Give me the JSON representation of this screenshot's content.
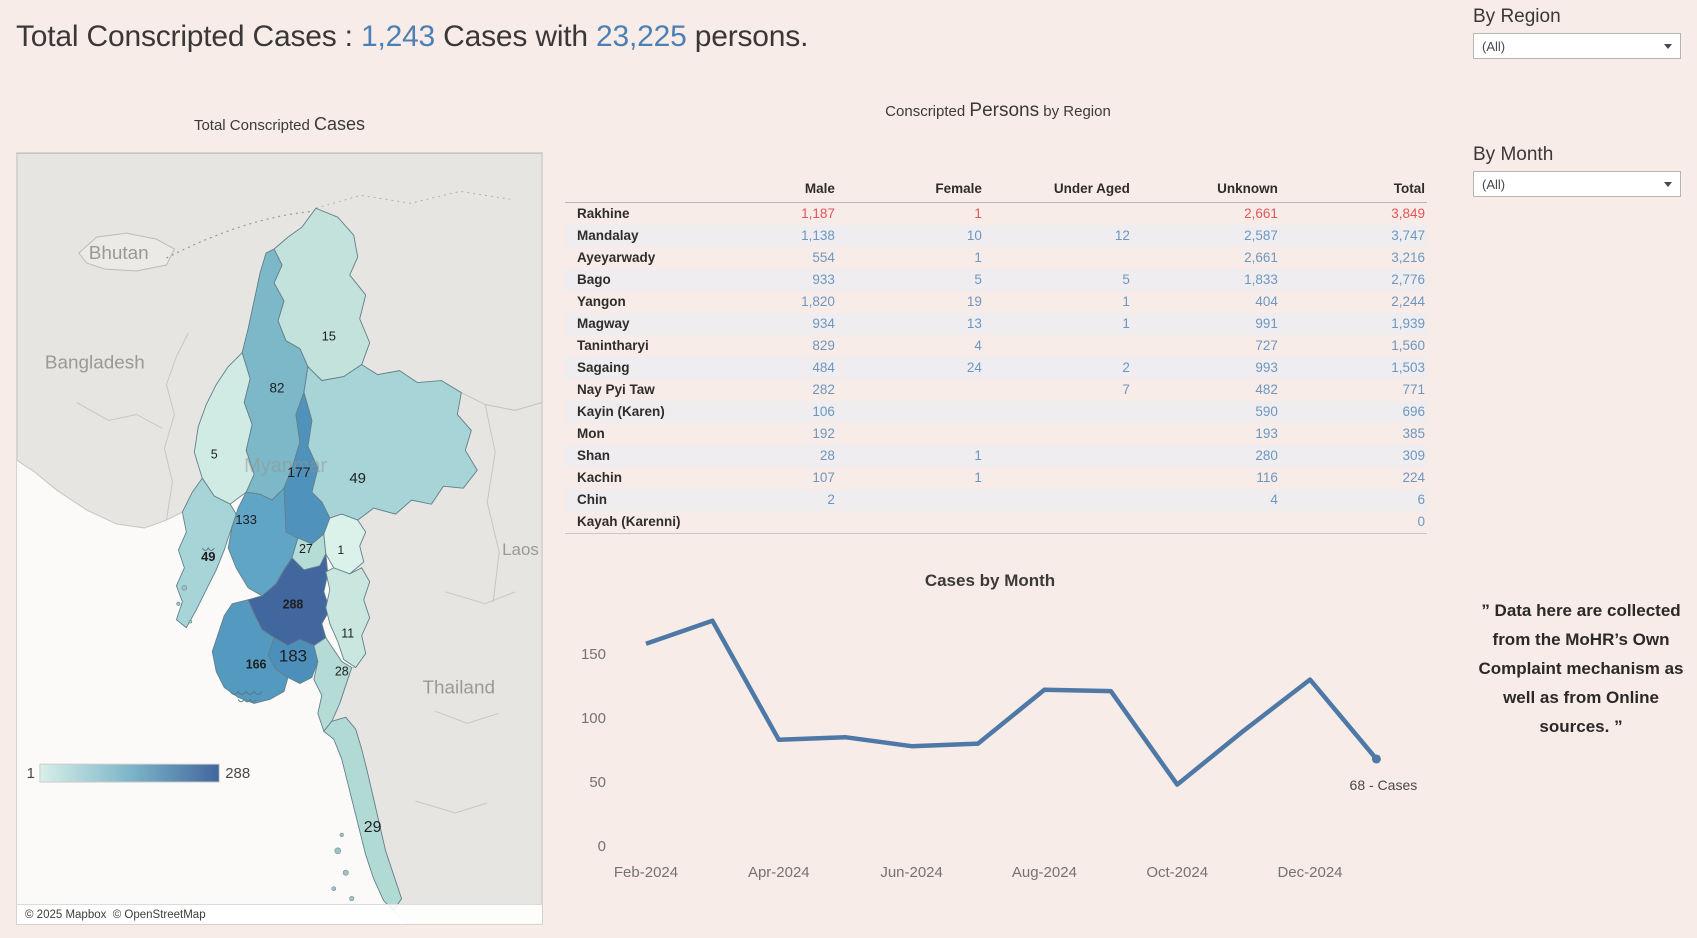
{
  "header": {
    "title_prefix": "Total Conscripted Cases : ",
    "cases_count": "1,243",
    "title_middle": " Cases with ",
    "persons_count": "23,225",
    "title_suffix": " persons."
  },
  "filters": {
    "region_label": "By Region",
    "region_value": "(All)",
    "month_label": "By Month",
    "month_value": "(All)"
  },
  "map": {
    "title_part1": "Total Conscripted ",
    "title_part2": "Cases",
    "legend_min": "1",
    "legend_max": "288",
    "attribution": "© 2025 Mapbox  © OpenStreetMap",
    "context_labels": {
      "bhutan": "Bhutan",
      "bangladesh": "Bangladesh",
      "myanmar": "Myanmar",
      "laos": "Laos",
      "thailand": "Thailand"
    }
  },
  "table": {
    "title_part1": "Conscripted ",
    "title_part2": "Persons",
    "title_part3": " by Region",
    "columns": [
      "Male",
      "Female",
      "Under Aged",
      "Unknown",
      "Total"
    ],
    "rows": [
      {
        "region": "Rakhine",
        "values": [
          "1,187",
          "1",
          "",
          "2,661",
          "3,849"
        ],
        "highlight": true
      },
      {
        "region": "Mandalay",
        "values": [
          "1,138",
          "10",
          "12",
          "2,587",
          "3,747"
        ],
        "highlight": false
      },
      {
        "region": "Ayeyarwady",
        "values": [
          "554",
          "1",
          "",
          "2,661",
          "3,216"
        ],
        "highlight": false
      },
      {
        "region": "Bago",
        "values": [
          "933",
          "5",
          "5",
          "1,833",
          "2,776"
        ],
        "highlight": false
      },
      {
        "region": "Yangon",
        "values": [
          "1,820",
          "19",
          "1",
          "404",
          "2,244"
        ],
        "highlight": false
      },
      {
        "region": "Magway",
        "values": [
          "934",
          "13",
          "1",
          "991",
          "1,939"
        ],
        "highlight": false
      },
      {
        "region": "Tanintharyi",
        "values": [
          "829",
          "4",
          "",
          "727",
          "1,560"
        ],
        "highlight": false
      },
      {
        "region": "Sagaing",
        "values": [
          "484",
          "24",
          "2",
          "993",
          "1,503"
        ],
        "highlight": false
      },
      {
        "region": "Nay Pyi Taw",
        "values": [
          "282",
          "",
          "7",
          "482",
          "771"
        ],
        "highlight": false
      },
      {
        "region": "Kayin (Karen)",
        "values": [
          "106",
          "",
          "",
          "590",
          "696"
        ],
        "highlight": false
      },
      {
        "region": "Mon",
        "values": [
          "192",
          "",
          "",
          "193",
          "385"
        ],
        "highlight": false
      },
      {
        "region": "Shan",
        "values": [
          "28",
          "1",
          "",
          "280",
          "309"
        ],
        "highlight": false
      },
      {
        "region": "Kachin",
        "values": [
          "107",
          "1",
          "",
          "116",
          "224"
        ],
        "highlight": false
      },
      {
        "region": "Chin",
        "values": [
          "2",
          "",
          "",
          "4",
          "6"
        ],
        "highlight": false
      },
      {
        "region": "Kayah (Karenni)",
        "values": [
          "",
          "",
          "",
          "",
          "0"
        ],
        "highlight": false
      }
    ]
  },
  "chart_data": [
    {
      "type": "line",
      "title": "Cases by Month",
      "x": [
        "Feb-2024",
        "Mar-2024",
        "Apr-2024",
        "May-2024",
        "Jun-2024",
        "Jul-2024",
        "Aug-2024",
        "Sep-2024",
        "Oct-2024",
        "Nov-2024",
        "Dec-2024",
        "Jan-2025"
      ],
      "values": [
        158,
        176,
        83,
        85,
        78,
        80,
        122,
        121,
        48,
        90,
        130,
        68
      ],
      "x_axis_labels": [
        "Feb-2024",
        "Apr-2024",
        "Jun-2024",
        "Aug-2024",
        "Oct-2024",
        "Dec-2024"
      ],
      "y_ticks": [
        0,
        50,
        100,
        150
      ],
      "ylim": [
        0,
        190
      ],
      "grid": false,
      "legend_position": "none",
      "line_color": "#4e79a7",
      "annotation_label": "68 - Cases"
    },
    {
      "type": "choropleth",
      "title": "Total Conscripted Cases",
      "colorscale": {
        "min": 1,
        "max": 288,
        "min_color": "#d8efe8",
        "max_color": "#41679e"
      },
      "regions": [
        {
          "name": "Kachin",
          "value": "15",
          "color": "#c3e2db"
        },
        {
          "name": "Sagaing",
          "value": "82",
          "color": "#7db8c9"
        },
        {
          "name": "Chin",
          "value": "5",
          "color": "#d0ebe3"
        },
        {
          "name": "Shan",
          "value": "49",
          "color": "#a6d4d7"
        },
        {
          "name": "Mandalay",
          "value": "177",
          "color": "#4f93bd"
        },
        {
          "name": "Magway",
          "value": "133",
          "color": "#60a5c5"
        },
        {
          "name": "Rakhine",
          "value": "49",
          "color": "#a6d4d7"
        },
        {
          "name": "NayPyiTaw",
          "value": "27",
          "color": "#b6dcd8"
        },
        {
          "name": "Kayah",
          "value": "1",
          "color": "#dbf2ea"
        },
        {
          "name": "Bago",
          "value": "288",
          "color": "#41679e"
        },
        {
          "name": "Kayin",
          "value": "11",
          "color": "#c9e7df"
        },
        {
          "name": "Yangon",
          "value": "183",
          "color": "#4c8fba"
        },
        {
          "name": "Ayeyarwady",
          "value": "166",
          "color": "#5399c0"
        },
        {
          "name": "Mon",
          "value": "28",
          "color": "#b4dbd6"
        },
        {
          "name": "Tanintharyi",
          "value": "29",
          "color": "#b2dad5"
        }
      ]
    }
  ],
  "note": {
    "text": "” Data here are collected from the MoHR’s Own Complaint mechanism as well as from Online sources. ”"
  }
}
